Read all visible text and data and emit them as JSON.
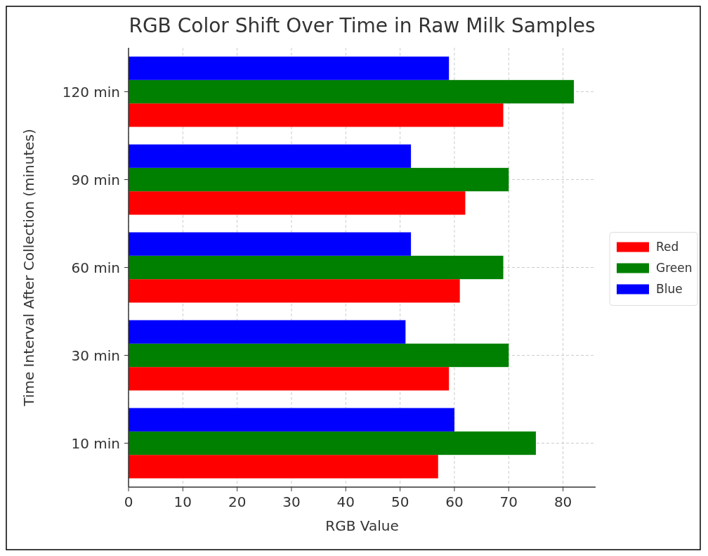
{
  "chart_data": {
    "type": "bar",
    "orientation": "horizontal",
    "title": "RGB Color Shift Over Time in Raw Milk Samples",
    "xlabel": "RGB Value",
    "ylabel": "Time Interval After Collection (minutes)",
    "categories": [
      "120 min",
      "90 min",
      "60 min",
      "30 min",
      "10 min"
    ],
    "series": [
      {
        "name": "Red",
        "color": "#ff0000",
        "values": [
          69,
          62,
          61,
          59,
          57
        ]
      },
      {
        "name": "Green",
        "color": "#008000",
        "values": [
          82,
          70,
          69,
          70,
          75
        ]
      },
      {
        "name": "Blue",
        "color": "#0000ff",
        "values": [
          59,
          52,
          52,
          51,
          60
        ]
      }
    ],
    "xlim": [
      0,
      86
    ],
    "xticks": [
      0,
      10,
      20,
      30,
      40,
      50,
      60,
      70,
      80
    ],
    "grid": true,
    "legend": "right"
  }
}
